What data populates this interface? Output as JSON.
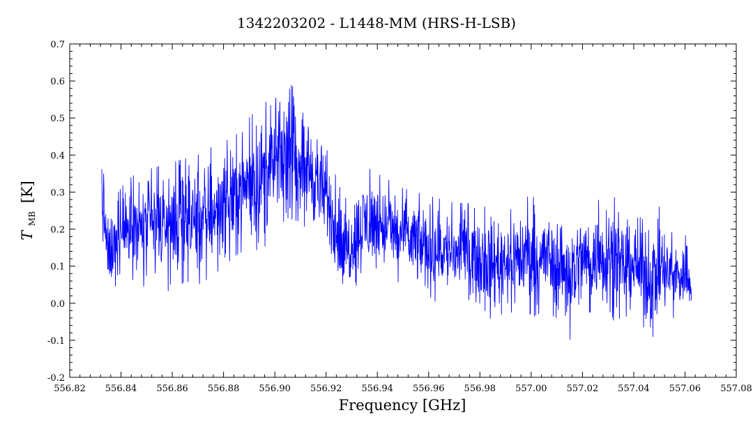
{
  "chart_data": {
    "type": "line",
    "title": "1342203202 - L1448-MM (HRS-H-LSB)",
    "xlabel": "Frequency [GHz]",
    "ylabel_main": "T",
    "ylabel_sub": "MB",
    "ylabel_unit": "[K]",
    "xlim": [
      556.82,
      557.08
    ],
    "ylim": [
      -0.2,
      0.7
    ],
    "x_ticks": [
      "556.82",
      "556.84",
      "556.86",
      "556.88",
      "556.90",
      "556.92",
      "556.94",
      "556.96",
      "556.98",
      "557.00",
      "557.02",
      "557.04",
      "557.06",
      "557.08"
    ],
    "y_ticks": [
      "-0.2",
      "-0.1",
      "0.0",
      "0.1",
      "0.2",
      "0.3",
      "0.4",
      "0.5",
      "0.6",
      "0.7"
    ],
    "grid": false,
    "series": [
      {
        "color": "#0000ff",
        "x_start": 556.8325,
        "x_end": 557.0625,
        "envelope": [
          {
            "x": 556.8325,
            "min": 0.14,
            "max": 0.46
          },
          {
            "x": 556.835,
            "min": -0.01,
            "max": 0.25
          },
          {
            "x": 556.838,
            "min": 0.05,
            "max": 0.29
          },
          {
            "x": 556.842,
            "min": 0.07,
            "max": 0.33
          },
          {
            "x": 556.846,
            "min": 0.06,
            "max": 0.35
          },
          {
            "x": 556.85,
            "min": 0.04,
            "max": 0.36
          },
          {
            "x": 556.855,
            "min": 0.04,
            "max": 0.37
          },
          {
            "x": 556.86,
            "min": 0.03,
            "max": 0.38
          },
          {
            "x": 556.865,
            "min": 0.06,
            "max": 0.39
          },
          {
            "x": 556.87,
            "min": 0.05,
            "max": 0.4
          },
          {
            "x": 556.875,
            "min": 0.07,
            "max": 0.42
          },
          {
            "x": 556.88,
            "min": 0.1,
            "max": 0.45
          },
          {
            "x": 556.885,
            "min": 0.13,
            "max": 0.47
          },
          {
            "x": 556.89,
            "min": 0.15,
            "max": 0.5
          },
          {
            "x": 556.895,
            "min": 0.14,
            "max": 0.54
          },
          {
            "x": 556.9,
            "min": 0.2,
            "max": 0.55
          },
          {
            "x": 556.905,
            "min": 0.23,
            "max": 0.6
          },
          {
            "x": 556.91,
            "min": 0.22,
            "max": 0.56
          },
          {
            "x": 556.915,
            "min": 0.18,
            "max": 0.52
          },
          {
            "x": 556.92,
            "min": 0.14,
            "max": 0.42
          },
          {
            "x": 556.924,
            "min": 0.06,
            "max": 0.34
          },
          {
            "x": 556.927,
            "min": -0.03,
            "max": 0.28
          },
          {
            "x": 556.93,
            "min": 0.04,
            "max": 0.3
          },
          {
            "x": 556.935,
            "min": 0.06,
            "max": 0.37
          },
          {
            "x": 556.94,
            "min": 0.08,
            "max": 0.35
          },
          {
            "x": 556.945,
            "min": 0.07,
            "max": 0.33
          },
          {
            "x": 556.95,
            "min": 0.05,
            "max": 0.31
          },
          {
            "x": 556.955,
            "min": 0.03,
            "max": 0.3
          },
          {
            "x": 556.96,
            "min": 0.0,
            "max": 0.29
          },
          {
            "x": 556.965,
            "min": 0.01,
            "max": 0.28
          },
          {
            "x": 556.97,
            "min": 0.0,
            "max": 0.27
          },
          {
            "x": 556.975,
            "min": 0.01,
            "max": 0.27
          },
          {
            "x": 556.98,
            "min": 0.0,
            "max": 0.26
          },
          {
            "x": 556.985,
            "min": -0.05,
            "max": 0.26
          },
          {
            "x": 556.99,
            "min": -0.02,
            "max": 0.26
          },
          {
            "x": 556.995,
            "min": -0.03,
            "max": 0.28
          },
          {
            "x": 557.0,
            "min": -0.04,
            "max": 0.29
          },
          {
            "x": 557.005,
            "min": -0.02,
            "max": 0.27
          },
          {
            "x": 557.01,
            "min": -0.04,
            "max": 0.27
          },
          {
            "x": 557.015,
            "min": -0.1,
            "max": 0.26
          },
          {
            "x": 557.02,
            "min": -0.03,
            "max": 0.27
          },
          {
            "x": 557.025,
            "min": -0.02,
            "max": 0.26
          },
          {
            "x": 557.03,
            "min": -0.05,
            "max": 0.33
          },
          {
            "x": 557.035,
            "min": -0.04,
            "max": 0.24
          },
          {
            "x": 557.04,
            "min": -0.03,
            "max": 0.25
          },
          {
            "x": 557.045,
            "min": -0.1,
            "max": 0.24
          },
          {
            "x": 557.05,
            "min": -0.08,
            "max": 0.26
          },
          {
            "x": 557.055,
            "min": -0.04,
            "max": 0.19
          },
          {
            "x": 557.0625,
            "min": -0.03,
            "max": 0.18
          }
        ]
      }
    ]
  }
}
